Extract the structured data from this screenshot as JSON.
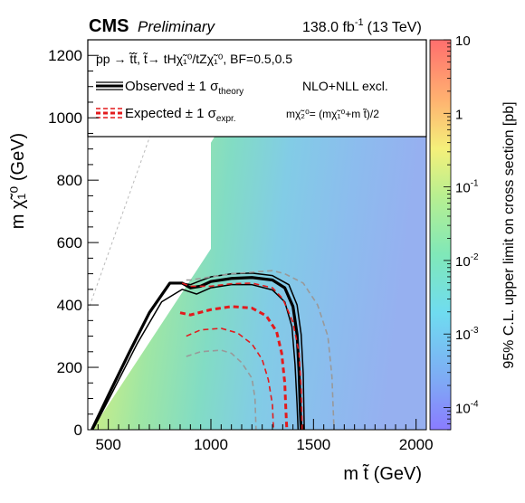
{
  "header": {
    "experiment": "CMS",
    "status": "Preliminary",
    "luminosity_value": "138.0 fb",
    "luminosity_exp": "-1",
    "energy": "(13 TeV)"
  },
  "legend": {
    "process_text": "pp → t̃t̃, t̃→ tHχ̃₁⁰/tZχ̃₁⁰, BF=0.5,0.5",
    "observed_label": "Observed ± 1 σ",
    "observed_sub": "theory",
    "expected_label": "Expected ± 1 σ",
    "expected_sub": "expr.",
    "xsec_label": "NLO+NLL excl.",
    "mass_relation": "mχ̃₂⁰= (mχ̃₁⁰+m t̃)/2"
  },
  "colors": {
    "observed": "#000000",
    "expected": "#e31a1c",
    "expected_band": "#999999",
    "diagonal": "#bbbbbb"
  },
  "chart_data": {
    "type": "heatmap",
    "xlabel": "m t̃ (GeV)",
    "ylabel": "m χ̃₁⁰ (GeV)",
    "zlabel": "95% C.L. upper limit on cross section [pb]",
    "xlim": [
      400,
      2050
    ],
    "ylim": [
      0,
      1250
    ],
    "zlim": [
      5e-05,
      10
    ],
    "z_scale": "log",
    "x_ticks": [
      500,
      1000,
      1500,
      2000
    ],
    "y_ticks": [
      0,
      200,
      400,
      600,
      800,
      1000,
      1200
    ],
    "z_ticks": [
      {
        "value": 10,
        "label": "10"
      },
      {
        "value": 1,
        "label": "1"
      },
      {
        "value": 0.1,
        "label": "10",
        "exp": "-1"
      },
      {
        "value": 0.01,
        "label": "10",
        "exp": "-2"
      },
      {
        "value": 0.001,
        "label": "10",
        "exp": "-3"
      },
      {
        "value": 0.0001,
        "label": "10",
        "exp": "-4"
      }
    ],
    "curves": [
      {
        "style": "observed",
        "points": [
          [
            420,
            0
          ],
          [
            500,
            110
          ],
          [
            600,
            245
          ],
          [
            700,
            375
          ],
          [
            800,
            470
          ],
          [
            860,
            470
          ],
          [
            900,
            455
          ],
          [
            950,
            460
          ],
          [
            1000,
            475
          ],
          [
            1100,
            485
          ],
          [
            1200,
            488
          ],
          [
            1300,
            480
          ],
          [
            1360,
            455
          ],
          [
            1400,
            395
          ],
          [
            1420,
            305
          ],
          [
            1430,
            180
          ],
          [
            1435,
            70
          ],
          [
            1440,
            0
          ]
        ]
      },
      {
        "style": "observed_band",
        "points": [
          [
            425,
            0
          ],
          [
            520,
            120
          ],
          [
            640,
            275
          ],
          [
            760,
            410
          ],
          [
            860,
            450
          ],
          [
            930,
            435
          ],
          [
            1000,
            455
          ],
          [
            1100,
            465
          ],
          [
            1200,
            465
          ],
          [
            1300,
            448
          ],
          [
            1360,
            410
          ],
          [
            1395,
            330
          ],
          [
            1410,
            210
          ],
          [
            1420,
            80
          ],
          [
            1425,
            0
          ]
        ]
      },
      {
        "style": "observed_band",
        "points": [
          [
            860,
            470
          ],
          [
            900,
            465
          ],
          [
            950,
            478
          ],
          [
            1000,
            490
          ],
          [
            1100,
            500
          ],
          [
            1200,
            502
          ],
          [
            1300,
            494
          ],
          [
            1380,
            465
          ],
          [
            1420,
            400
          ],
          [
            1440,
            305
          ],
          [
            1450,
            180
          ],
          [
            1455,
            0
          ]
        ]
      },
      {
        "style": "expected",
        "points": [
          [
            850,
            375
          ],
          [
            900,
            368
          ],
          [
            1000,
            385
          ],
          [
            1100,
            395
          ],
          [
            1200,
            390
          ],
          [
            1270,
            365
          ],
          [
            1320,
            315
          ],
          [
            1345,
            245
          ],
          [
            1360,
            150
          ],
          [
            1365,
            70
          ],
          [
            1370,
            0
          ]
        ]
      },
      {
        "style": "expected_band",
        "points": [
          [
            860,
            470
          ],
          [
            900,
            460
          ],
          [
            1000,
            460
          ],
          [
            1100,
            468
          ],
          [
            1200,
            470
          ],
          [
            1300,
            455
          ],
          [
            1350,
            420
          ],
          [
            1400,
            345
          ],
          [
            1430,
            245
          ],
          [
            1440,
            130
          ],
          [
            1445,
            0
          ]
        ]
      },
      {
        "style": "expected_band",
        "points": [
          [
            880,
            300
          ],
          [
            950,
            320
          ],
          [
            1050,
            325
          ],
          [
            1130,
            310
          ],
          [
            1200,
            275
          ],
          [
            1250,
            225
          ],
          [
            1280,
            160
          ],
          [
            1300,
            80
          ],
          [
            1305,
            0
          ]
        ]
      },
      {
        "style": "expected_s2",
        "points": [
          [
            880,
            480
          ],
          [
            900,
            480
          ],
          [
            1000,
            490
          ],
          [
            1100,
            500
          ],
          [
            1200,
            505
          ],
          [
            1300,
            510
          ],
          [
            1360,
            500
          ],
          [
            1450,
            470
          ],
          [
            1520,
            400
          ],
          [
            1570,
            300
          ],
          [
            1590,
            170
          ],
          [
            1600,
            0
          ]
        ]
      },
      {
        "style": "expected_s2",
        "points": [
          [
            880,
            235
          ],
          [
            950,
            250
          ],
          [
            1050,
            255
          ],
          [
            1100,
            245
          ],
          [
            1150,
            215
          ],
          [
            1200,
            165
          ],
          [
            1215,
            100
          ],
          [
            1220,
            0
          ]
        ]
      }
    ]
  }
}
